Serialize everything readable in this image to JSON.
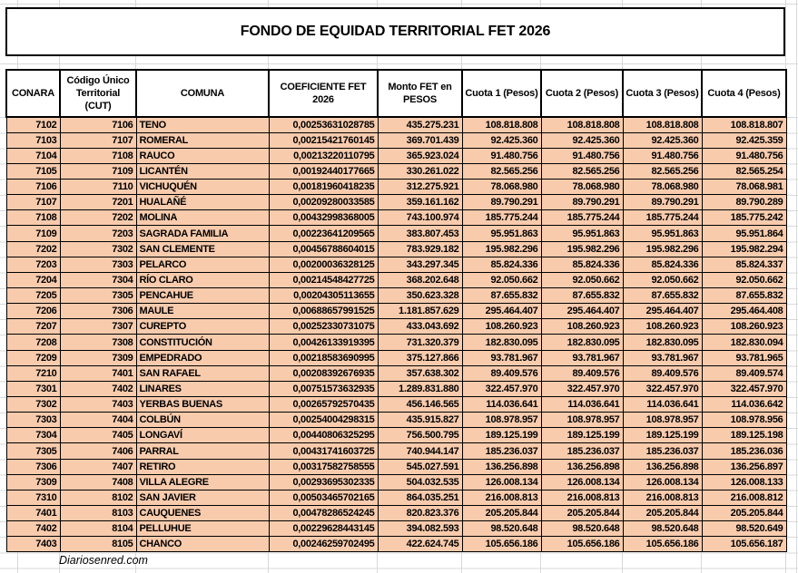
{
  "header": {
    "title": "FONDO DE EQUIDAD TERRITORIAL FET 2026"
  },
  "footer": {
    "credit": "Diariosenred.com"
  },
  "colors": {
    "row_fill": "#F8CBAD",
    "header_fill": "#FFFFFF",
    "border": "#000000",
    "gridline": "#D9D9D9",
    "page_bg": "#FFFFFF",
    "text": "#000000"
  },
  "table": {
    "columns": [
      "CONARA",
      "Código Único Territorial (CUT)",
      "COMUNA",
      "COEFICIENTE FET 2026",
      "Monto FET en PESOS",
      "Cuota 1 (Pesos)",
      "Cuota 2 (Pesos)",
      "Cuota 3 (Pesos)",
      "Cuota 4 (Pesos)"
    ],
    "rows": [
      [
        "7102",
        "7106",
        "TENO",
        "0,00253631028785",
        "435.275.231",
        "108.818.808",
        "108.818.808",
        "108.818.808",
        "108.818.807"
      ],
      [
        "7103",
        "7107",
        "ROMERAL",
        "0,00215421760145",
        "369.701.439",
        "92.425.360",
        "92.425.360",
        "92.425.360",
        "92.425.359"
      ],
      [
        "7104",
        "7108",
        "RAUCO",
        "0,00213220110795",
        "365.923.024",
        "91.480.756",
        "91.480.756",
        "91.480.756",
        "91.480.756"
      ],
      [
        "7105",
        "7109",
        "LICANTÉN",
        "0,00192440177665",
        "330.261.022",
        "82.565.256",
        "82.565.256",
        "82.565.256",
        "82.565.254"
      ],
      [
        "7106",
        "7110",
        "VICHUQUÉN",
        "0,00181960418235",
        "312.275.921",
        "78.068.980",
        "78.068.980",
        "78.068.980",
        "78.068.981"
      ],
      [
        "7107",
        "7201",
        "HUALAÑÉ",
        "0,00209280033585",
        "359.161.162",
        "89.790.291",
        "89.790.291",
        "89.790.291",
        "89.790.289"
      ],
      [
        "7108",
        "7202",
        "MOLINA",
        "0,00432998368005",
        "743.100.974",
        "185.775.244",
        "185.775.244",
        "185.775.244",
        "185.775.242"
      ],
      [
        "7109",
        "7203",
        "SAGRADA FAMILIA",
        "0,00223641209565",
        "383.807.453",
        "95.951.863",
        "95.951.863",
        "95.951.863",
        "95.951.864"
      ],
      [
        "7202",
        "7302",
        "SAN CLEMENTE",
        "0,00456788604015",
        "783.929.182",
        "195.982.296",
        "195.982.296",
        "195.982.296",
        "195.982.294"
      ],
      [
        "7203",
        "7303",
        "PELARCO",
        "0,00200036328125",
        "343.297.345",
        "85.824.336",
        "85.824.336",
        "85.824.336",
        "85.824.337"
      ],
      [
        "7204",
        "7304",
        "RÍO CLARO",
        "0,00214548427725",
        "368.202.648",
        "92.050.662",
        "92.050.662",
        "92.050.662",
        "92.050.662"
      ],
      [
        "7205",
        "7305",
        "PENCAHUE",
        "0,00204305113655",
        "350.623.328",
        "87.655.832",
        "87.655.832",
        "87.655.832",
        "87.655.832"
      ],
      [
        "7206",
        "7306",
        "MAULE",
        "0,00688657991525",
        "1.181.857.629",
        "295.464.407",
        "295.464.407",
        "295.464.407",
        "295.464.408"
      ],
      [
        "7207",
        "7307",
        "CUREPTO",
        "0,00252330731075",
        "433.043.692",
        "108.260.923",
        "108.260.923",
        "108.260.923",
        "108.260.923"
      ],
      [
        "7208",
        "7308",
        "CONSTITUCIÓN",
        "0,00426133919395",
        "731.320.379",
        "182.830.095",
        "182.830.095",
        "182.830.095",
        "182.830.094"
      ],
      [
        "7209",
        "7309",
        "EMPEDRADO",
        "0,00218583690995",
        "375.127.866",
        "93.781.967",
        "93.781.967",
        "93.781.967",
        "93.781.965"
      ],
      [
        "7210",
        "7401",
        "SAN RAFAEL",
        "0,00208392676935",
        "357.638.302",
        "89.409.576",
        "89.409.576",
        "89.409.576",
        "89.409.574"
      ],
      [
        "7301",
        "7402",
        "LINARES",
        "0,00751573632935",
        "1.289.831.880",
        "322.457.970",
        "322.457.970",
        "322.457.970",
        "322.457.970"
      ],
      [
        "7302",
        "7403",
        "YERBAS BUENAS",
        "0,00265792570435",
        "456.146.565",
        "114.036.641",
        "114.036.641",
        "114.036.641",
        "114.036.642"
      ],
      [
        "7303",
        "7404",
        "COLBÚN",
        "0,00254004298315",
        "435.915.827",
        "108.978.957",
        "108.978.957",
        "108.978.957",
        "108.978.956"
      ],
      [
        "7304",
        "7405",
        "LONGAVÍ",
        "0,00440806325295",
        "756.500.795",
        "189.125.199",
        "189.125.199",
        "189.125.199",
        "189.125.198"
      ],
      [
        "7305",
        "7406",
        "PARRAL",
        "0,00431741603725",
        "740.944.147",
        "185.236.037",
        "185.236.037",
        "185.236.037",
        "185.236.036"
      ],
      [
        "7306",
        "7407",
        "RETIRO",
        "0,00317582758555",
        "545.027.591",
        "136.256.898",
        "136.256.898",
        "136.256.898",
        "136.256.897"
      ],
      [
        "7309",
        "7408",
        "VILLA ALEGRE",
        "0,00293695302335",
        "504.032.535",
        "126.008.134",
        "126.008.134",
        "126.008.134",
        "126.008.133"
      ],
      [
        "7310",
        "8102",
        "SAN JAVIER",
        "0,00503465702165",
        "864.035.251",
        "216.008.813",
        "216.008.813",
        "216.008.813",
        "216.008.812"
      ],
      [
        "7401",
        "8103",
        "CAUQUENES",
        "0,00478286524245",
        "820.823.376",
        "205.205.844",
        "205.205.844",
        "205.205.844",
        "205.205.844"
      ],
      [
        "7402",
        "8104",
        "PELLUHUE",
        "0,00229628443145",
        "394.082.593",
        "98.520.648",
        "98.520.648",
        "98.520.648",
        "98.520.649"
      ],
      [
        "7403",
        "8105",
        "CHANCO",
        "0,00246259702495",
        "422.624.745",
        "105.656.186",
        "105.656.186",
        "105.656.186",
        "105.656.187"
      ]
    ]
  }
}
